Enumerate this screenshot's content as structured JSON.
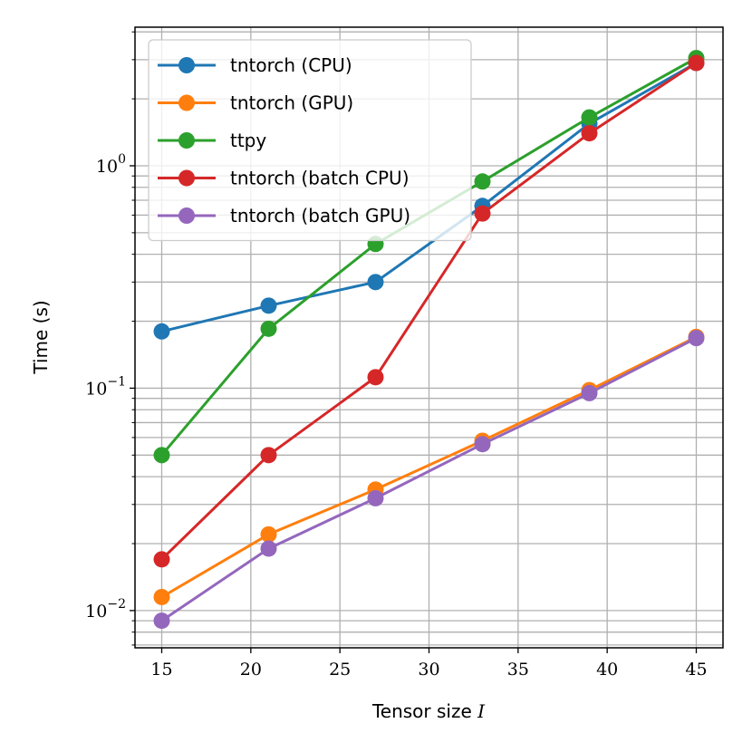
{
  "chart_data": {
    "type": "line",
    "xlabel": "Tensor size",
    "xlabel_var": "I",
    "ylabel": "Time (s)",
    "yscale": "log",
    "x": [
      15,
      21,
      27,
      33,
      39,
      45
    ],
    "xlim": [
      13.5,
      46.5
    ],
    "ylim": [
      0.0068,
      4.2
    ],
    "xticks": [
      15,
      20,
      25,
      30,
      35,
      40,
      45
    ],
    "yticks": [
      {
        "value": 1,
        "base": "10",
        "exp": "0"
      },
      {
        "value": 0.1,
        "base": "10",
        "exp": "−1"
      },
      {
        "value": 0.01,
        "base": "10",
        "exp": "−2"
      }
    ],
    "grid": true,
    "legend_position": "top-left",
    "series": [
      {
        "name": "tntorch (CPU)",
        "color": "#1f77b4",
        "values": [
          0.18,
          0.235,
          0.3,
          0.66,
          1.55,
          2.9
        ]
      },
      {
        "name": "tntorch (GPU)",
        "color": "#ff7f0e",
        "values": [
          0.0115,
          0.022,
          0.035,
          0.058,
          0.098,
          0.17
        ]
      },
      {
        "name": "ttpy",
        "color": "#2ca02c",
        "values": [
          0.05,
          0.185,
          0.445,
          0.85,
          1.65,
          3.05
        ]
      },
      {
        "name": "tntorch (batch CPU)",
        "color": "#d62728",
        "values": [
          0.017,
          0.05,
          0.112,
          0.61,
          1.4,
          2.9
        ]
      },
      {
        "name": "tntorch (batch GPU)",
        "color": "#9467bd",
        "values": [
          0.009,
          0.019,
          0.032,
          0.056,
          0.095,
          0.168
        ]
      }
    ]
  }
}
